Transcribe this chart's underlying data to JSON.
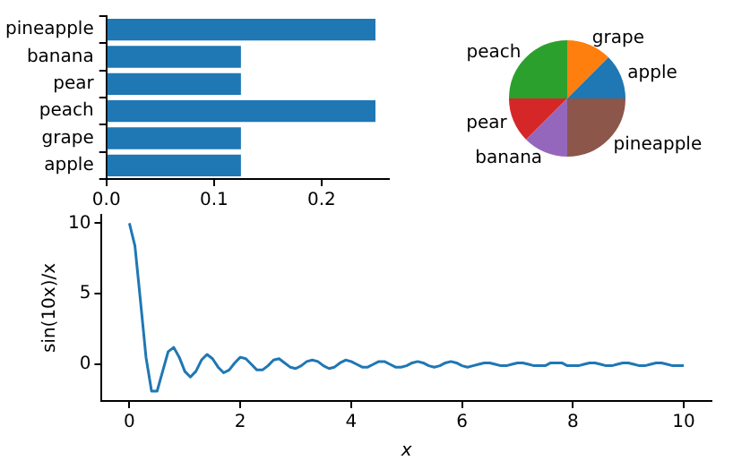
{
  "chart_data": [
    {
      "type": "bar",
      "orientation": "horizontal",
      "categories": [
        "pineapple",
        "banana",
        "pear",
        "peach",
        "grape",
        "apple"
      ],
      "values": [
        0.25,
        0.125,
        0.125,
        0.25,
        0.125,
        0.125
      ],
      "color": "#1f77b4",
      "xlim": [
        0,
        0.2625
      ],
      "xticks": [
        {
          "value": 0,
          "label": "0.0"
        },
        {
          "value": 0.1,
          "label": "0.1"
        },
        {
          "value": 0.2,
          "label": "0.2"
        }
      ],
      "grid": false,
      "legend": false
    },
    {
      "type": "pie",
      "categories": [
        "grape",
        "apple",
        "pineapple",
        "banana",
        "pear",
        "peach"
      ],
      "values": [
        12.5,
        12.5,
        25,
        12.5,
        12.5,
        25
      ],
      "colors": [
        "#ff7f0e",
        "#1f77b4",
        "#8c564b",
        "#9467bd",
        "#d62728",
        "#2ca02c"
      ],
      "legend": false
    },
    {
      "type": "line",
      "xlabel": "x",
      "ylabel": "sin(10x)/x",
      "x": [
        0,
        0.1,
        0.2,
        0.3,
        0.4,
        0.5,
        0.6,
        0.7,
        0.8,
        0.9,
        1,
        1.1,
        1.2,
        1.3,
        1.4,
        1.5,
        1.6,
        1.7,
        1.8,
        1.9,
        2,
        2.1,
        2.2,
        2.3,
        2.4,
        2.5,
        2.6,
        2.7,
        2.8,
        2.9,
        3,
        3.1,
        3.2,
        3.3,
        3.4,
        3.5,
        3.6,
        3.7,
        3.8,
        3.9,
        4,
        4.1,
        4.2,
        4.3,
        4.4,
        4.5,
        4.6,
        4.7,
        4.8,
        4.9,
        5,
        5.1,
        5.2,
        5.3,
        5.4,
        5.5,
        5.6,
        5.7,
        5.8,
        5.9,
        6,
        6.1,
        6.2,
        6.3,
        6.4,
        6.5,
        6.6,
        6.7,
        6.8,
        6.9,
        7,
        7.1,
        7.2,
        7.3,
        7.4,
        7.5,
        7.6,
        7.7,
        7.8,
        7.9,
        8,
        8.1,
        8.2,
        8.3,
        8.4,
        8.5,
        8.6,
        8.7,
        8.8,
        8.9,
        9,
        9.1,
        9.2,
        9.3,
        9.4,
        9.5,
        9.6,
        9.7,
        9.8,
        9.9,
        10
      ],
      "series": [
        {
          "color": "#1f77b4",
          "values": [
            10,
            8.4,
            4.5,
            0.5,
            -1.9,
            -1.9,
            -0.5,
            0.9,
            1.2,
            0.5,
            -0.5,
            -0.9,
            -0.5,
            0.3,
            0.7,
            0.4,
            -0.2,
            -0.6,
            -0.4,
            0.1,
            0.5,
            0.4,
            0,
            -0.4,
            -0.4,
            -0.1,
            0.3,
            0.4,
            0.1,
            -0.2,
            -0.3,
            -0.1,
            0.2,
            0.3,
            0.2,
            -0.1,
            -0.3,
            -0.2,
            0.1,
            0.3,
            0.2,
            0,
            -0.2,
            -0.2,
            0,
            0.2,
            0.2,
            0,
            -0.2,
            -0.2,
            -0.1,
            0.1,
            0.2,
            0.1,
            -0.1,
            -0.2,
            -0.1,
            0.1,
            0.2,
            0.1,
            -0.1,
            -0.2,
            -0.1,
            0,
            0.1,
            0.1,
            0,
            -0.1,
            -0.1,
            0,
            0.1,
            0.1,
            0,
            -0.1,
            -0.1,
            -0.1,
            0.1,
            0.1,
            0.1,
            -0.1,
            -0.1,
            -0.1,
            0,
            0.1,
            0.1,
            0,
            -0.1,
            -0.1,
            0,
            0.1,
            0.1,
            0,
            -0.1,
            -0.1,
            0,
            0.1,
            0.1,
            0,
            -0.1,
            -0.1,
            -0.1
          ]
        }
      ],
      "xlim": [
        -0.5,
        10.5
      ],
      "xticks": [
        0,
        2,
        4,
        6,
        8,
        10
      ],
      "ylim": [
        -2.6,
        10.6
      ],
      "yticks": [
        0,
        5,
        10
      ],
      "grid": false,
      "legend": false,
      "marker": "none",
      "line_style": "solid"
    }
  ]
}
